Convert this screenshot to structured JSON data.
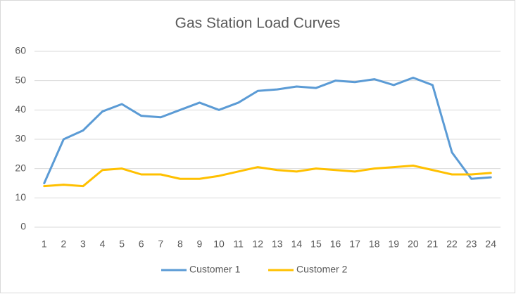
{
  "chart_data": {
    "type": "line",
    "title": "Gas Station Load Curves",
    "categories": [
      "1",
      "2",
      "3",
      "4",
      "5",
      "6",
      "7",
      "8",
      "9",
      "10",
      "11",
      "12",
      "13",
      "14",
      "15",
      "16",
      "17",
      "18",
      "19",
      "20",
      "21",
      "22",
      "23",
      "24"
    ],
    "series": [
      {
        "name": "Customer 1",
        "color": "#5b9bd5",
        "values": [
          15,
          30,
          33,
          39.5,
          42,
          38,
          37.5,
          40,
          42.5,
          40,
          42.5,
          46.5,
          47,
          48,
          47.5,
          50,
          49.5,
          50.5,
          48.5,
          51,
          48.5,
          25.5,
          16.5,
          17
        ]
      },
      {
        "name": "Customer 2",
        "color": "#ffc000",
        "values": [
          14,
          14.5,
          14,
          19.5,
          20,
          18,
          18,
          16.5,
          16.5,
          17.5,
          19,
          20.5,
          19.5,
          19,
          20,
          19.5,
          19,
          20,
          20.5,
          21,
          19.5,
          18,
          18,
          18.5
        ]
      }
    ],
    "ylim": [
      0,
      60
    ],
    "yticks": [
      0,
      10,
      20,
      30,
      40,
      50,
      60
    ],
    "grid": true,
    "legend": "bottom"
  }
}
